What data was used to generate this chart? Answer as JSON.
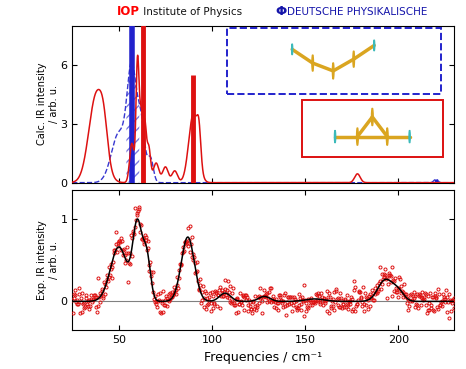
{
  "xlim": [
    25,
    230
  ],
  "upper_ylim": [
    0,
    8.0
  ],
  "lower_ylim": [
    -0.35,
    1.35
  ],
  "upper_yticks": [
    0,
    3,
    6
  ],
  "lower_yticks": [
    0,
    1
  ],
  "xlabel": "Frequencies / cm⁻¹",
  "upper_ylabel": "Calc. IR intensity\n/ arb. u.",
  "lower_ylabel": "Exp. IR intensity\n/ arb. u.",
  "xticks": [
    50,
    100,
    150,
    200
  ],
  "au_color": "#DAA520",
  "kr_color": "#3BBABA",
  "red_color": "#DD1111",
  "blue_color": "#2222CC",
  "background_color": "#ffffff"
}
